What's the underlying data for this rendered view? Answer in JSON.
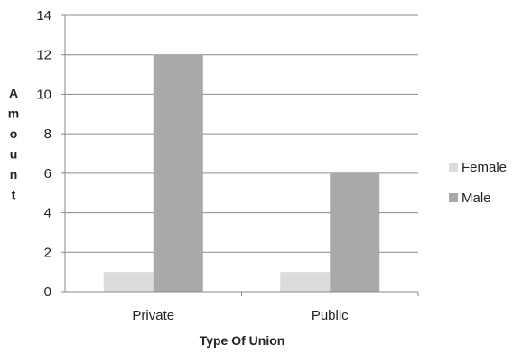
{
  "chart_data": {
    "type": "bar",
    "title": "",
    "xlabel": "Type Of Union",
    "ylabel": "Amount",
    "categories": [
      "Private",
      "Public"
    ],
    "series": [
      {
        "name": "Female",
        "values": [
          1,
          1
        ],
        "color": "#dcdcdc"
      },
      {
        "name": "Male",
        "values": [
          12,
          6
        ],
        "color": "#a9a9a9"
      }
    ],
    "ylim": [
      0,
      14
    ],
    "yticks": [
      0,
      2,
      4,
      6,
      8,
      10,
      12,
      14
    ],
    "grid": true,
    "legend_position": "right"
  }
}
